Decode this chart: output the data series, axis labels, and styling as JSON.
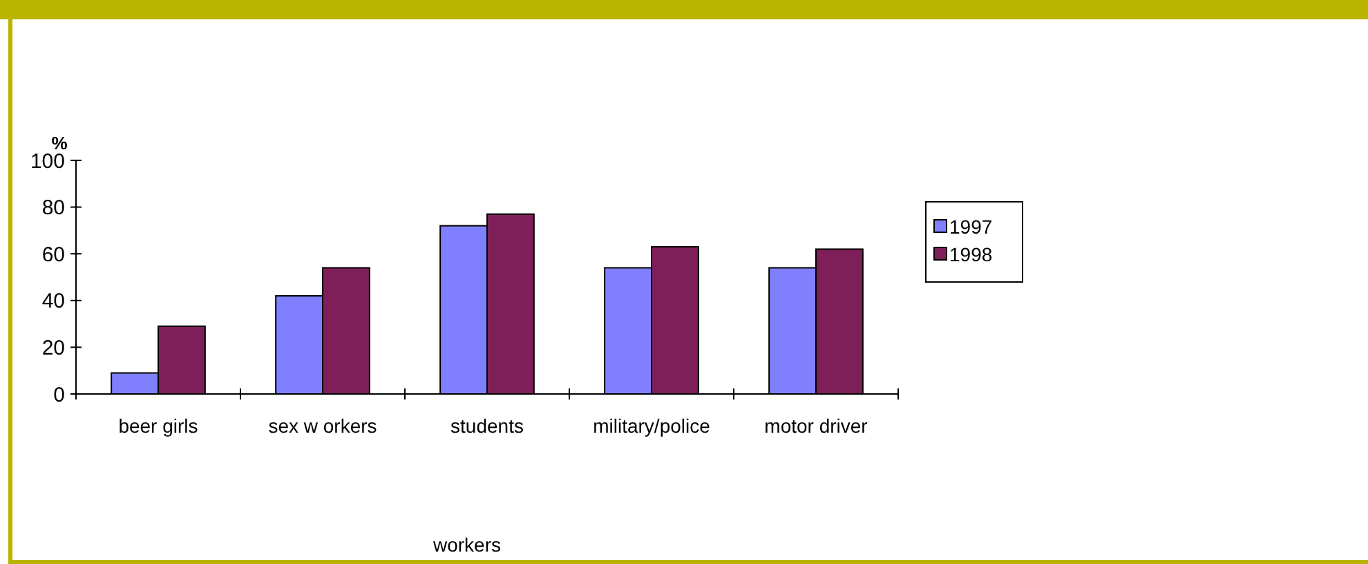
{
  "chart_data": {
    "type": "bar",
    "ylabel": "%",
    "xlabel": "workers",
    "categories": [
      "beer girls",
      "sex w orkers",
      "students",
      "military/police",
      "motor driver"
    ],
    "series": [
      {
        "name": "1997",
        "color": "#8080ff",
        "values": [
          9,
          42,
          72,
          54,
          54
        ]
      },
      {
        "name": "1998",
        "color": "#7f1f5a",
        "values": [
          29,
          54,
          77,
          63,
          62
        ]
      }
    ],
    "ylim": [
      0,
      100
    ],
    "yticks": [
      0,
      20,
      40,
      60,
      80,
      100
    ],
    "grid": false,
    "legend": "right"
  }
}
